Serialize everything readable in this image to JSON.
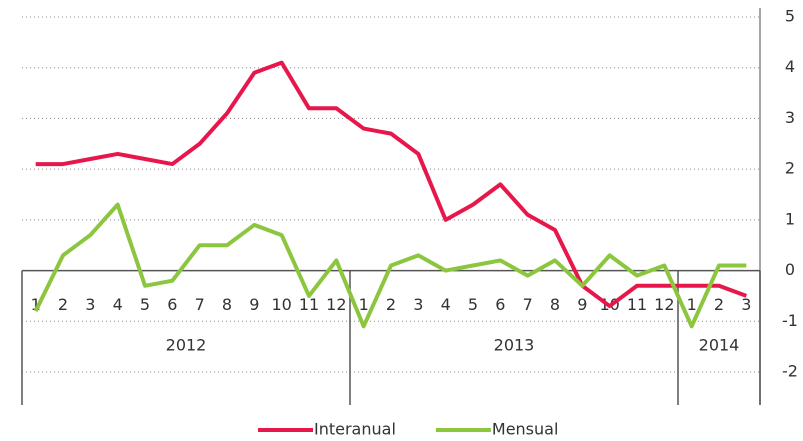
{
  "chart_data": {
    "type": "line",
    "categories": [
      "1",
      "2",
      "3",
      "4",
      "5",
      "6",
      "7",
      "8",
      "9",
      "10",
      "11",
      "12",
      "1",
      "2",
      "3",
      "4",
      "5",
      "6",
      "7",
      "8",
      "9",
      "10",
      "11",
      "12",
      "1",
      "2",
      "3"
    ],
    "groups": [
      "2012",
      "2013",
      "2014"
    ],
    "series": [
      {
        "name": "Interanual",
        "color": "#e8174b",
        "values": [
          2.1,
          2.1,
          2.2,
          2.3,
          2.2,
          2.1,
          2.5,
          3.1,
          3.9,
          4.1,
          3.2,
          3.2,
          2.8,
          2.7,
          2.3,
          1.0,
          1.3,
          1.7,
          1.1,
          0.8,
          -0.3,
          -0.7,
          -0.3,
          -0.3,
          -0.3,
          -0.3,
          -0.5
        ]
      },
      {
        "name": "Mensual",
        "color": "#8cc63f",
        "values": [
          -0.8,
          0.3,
          0.7,
          1.3,
          -0.3,
          -0.2,
          0.5,
          0.5,
          0.9,
          0.7,
          -0.5,
          0.2,
          -1.1,
          0.1,
          0.3,
          0.0,
          0.1,
          0.2,
          -0.1,
          0.2,
          -0.3,
          0.3,
          -0.1,
          0.1,
          -1.1,
          0.1,
          0.1
        ]
      }
    ],
    "ylim": [
      -2,
      5
    ],
    "yticks": [
      -2,
      -1,
      0,
      1,
      2,
      3,
      4,
      5
    ],
    "grid": true,
    "legend": "bottom"
  }
}
